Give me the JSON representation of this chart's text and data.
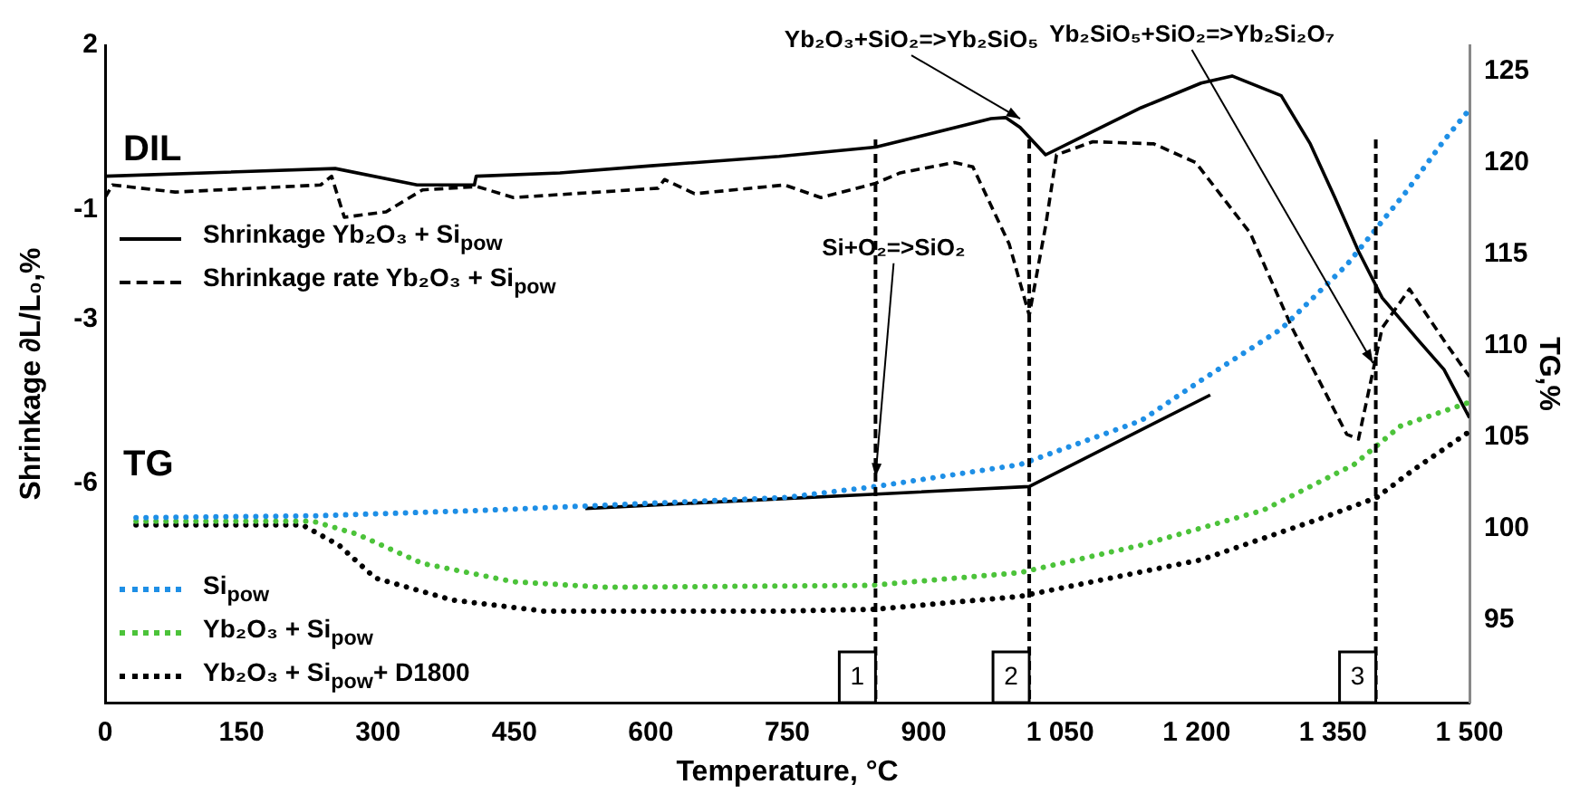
{
  "chart_data": {
    "type": "line",
    "xlabel": "Temperature, °C",
    "ylabel": "Shrinkage ∂L/L₀,%",
    "y2label": "TG,%",
    "xlim": [
      0,
      1500
    ],
    "xticks": [
      0,
      150,
      300,
      450,
      600,
      750,
      900,
      {
        "value": 1050,
        "label": "1 050"
      },
      {
        "value": 1200,
        "label": "1 200"
      },
      {
        "value": 1350,
        "label": "1 350"
      },
      {
        "value": 1500,
        "label": "1 500"
      }
    ],
    "ylim": [
      -10,
      2
    ],
    "yticks": [
      2,
      -1,
      -3,
      -6
    ],
    "y2lim": [
      90.5,
      126.4
    ],
    "y2ticks": [
      95,
      100,
      105,
      110,
      115,
      120,
      125
    ],
    "grid": false,
    "legend": "left",
    "marker": "none",
    "series": [
      {
        "name": "Shrinkage Yb₂O₃ + Si$_{pow}$",
        "color": "#000000",
        "line_style": "solid",
        "x": [
          0,
          253,
          343,
          406,
          408,
          500,
          600,
          741,
          847,
          974,
          990,
          1006,
          1034,
          1074,
          1139,
          1205,
          1239,
          1293,
          1325,
          1352,
          1378,
          1404,
          1444,
          1472,
          1500
        ],
        "values": [
          -0.39,
          -0.25,
          -0.55,
          -0.55,
          -0.39,
          -0.33,
          -0.2,
          -0.03,
          0.14,
          0.66,
          0.68,
          0.5,
          0.0,
          0.33,
          0.86,
          1.31,
          1.44,
          1.08,
          0.2,
          -0.78,
          -1.76,
          -2.61,
          -3.39,
          -3.92,
          -4.8
        ]
      },
      {
        "name": "Shrinkage rate Yb₂O₃ + Si$_{pow}$",
        "color": "#000000",
        "line_style": "dashed",
        "x": [
          0,
          8,
          77,
          237,
          249,
          263,
          309,
          349,
          409,
          449,
          608,
          615,
          648,
          747,
          787,
          847,
          874,
          934,
          954,
          994,
          1016,
          1034,
          1046,
          1086,
          1153,
          1199,
          1259,
          1305,
          1365,
          1378,
          1404,
          1434,
          1472,
          1500
        ],
        "values": [
          -0.78,
          -0.55,
          -0.68,
          -0.55,
          -0.39,
          -1.14,
          -1.04,
          -0.64,
          -0.58,
          -0.78,
          -0.61,
          -0.45,
          -0.71,
          -0.55,
          -0.78,
          -0.52,
          -0.33,
          -0.14,
          -0.22,
          -1.63,
          -2.93,
          -1.3,
          0.0,
          0.24,
          0.2,
          -0.14,
          -1.43,
          -3.16,
          -5.1,
          -5.19,
          -3.16,
          -2.45,
          -3.39,
          -4.05
        ]
      },
      {
        "name": "Si$_{pow}$",
        "color": "#1e8fe6",
        "line_style": "dotted",
        "axis": "y2",
        "x": [
          34,
          229,
          416,
          747,
          847,
          1006,
          1139,
          1205,
          1293,
          1365,
          1432,
          1472,
          1500
        ],
        "values": [
          100.6,
          100.7,
          101.0,
          101.7,
          102.3,
          103.5,
          105.9,
          108.1,
          110.9,
          114.4,
          118.5,
          121.2,
          122.9
        ]
      },
      {
        "name": "Yb₂O₃ + Si$_{pow}$",
        "color": "#4cc33a",
        "line_style": "dotted",
        "axis": "y2",
        "x": [
          34,
          229,
          277,
          349,
          449,
          548,
          841,
          1006,
          1139,
          1273,
          1373,
          1424,
          1500
        ],
        "values": [
          100.4,
          100.4,
          99.7,
          98.1,
          97.1,
          96.8,
          96.9,
          97.6,
          99.1,
          101.0,
          103.5,
          105.6,
          106.9
        ]
      },
      {
        "name": "Yb₂O₃ + Si$_{pow}$+ D1800",
        "color": "#000000",
        "line_style": "dotted",
        "axis": "y2",
        "x": [
          34,
          217,
          257,
          297,
          382,
          482,
          747,
          847,
          1006,
          1205,
          1339,
          1398,
          1438,
          1500
        ],
        "values": [
          100.2,
          100.2,
          99.1,
          97.3,
          96.1,
          95.5,
          95.5,
          95.6,
          96.3,
          98.3,
          100.6,
          101.7,
          103.2,
          105.3
        ]
      },
      {
        "color": "#000000",
        "line_style": "solid",
        "axis": "y2",
        "x": [
          528,
          1016,
          1215
        ],
        "values": [
          101.1,
          102.3,
          107.3
        ]
      }
    ],
    "ref_lines": [
      {
        "axis": "x",
        "value": 847,
        "line_style": "dashed",
        "color": "#000000"
      },
      {
        "axis": "x",
        "value": 1016,
        "line_style": "dashed",
        "color": "#000000"
      },
      {
        "axis": "x",
        "value": 1397,
        "line_style": "dashed",
        "color": "#000000"
      }
    ],
    "annotations": [
      "DIL",
      "TG",
      {
        "text": "Yb₂O₃+SiO₂=>Yb₂SiO₅",
        "x": 1006,
        "y": 0.66
      },
      {
        "text": "Yb₂SiO₅+SiO₂=>Yb₂Si₂O₇",
        "x": 1394,
        "y": -3.8
      },
      {
        "text": "Si+O₂=>SiO₂",
        "x": 847,
        "y": -5.88
      },
      {
        "text": "1",
        "x": 847,
        "y": -9.5
      },
      {
        "text": "2",
        "x": 1016,
        "y": -9.5
      },
      {
        "text": "3",
        "x": 1397,
        "y": -9.5
      }
    ]
  }
}
